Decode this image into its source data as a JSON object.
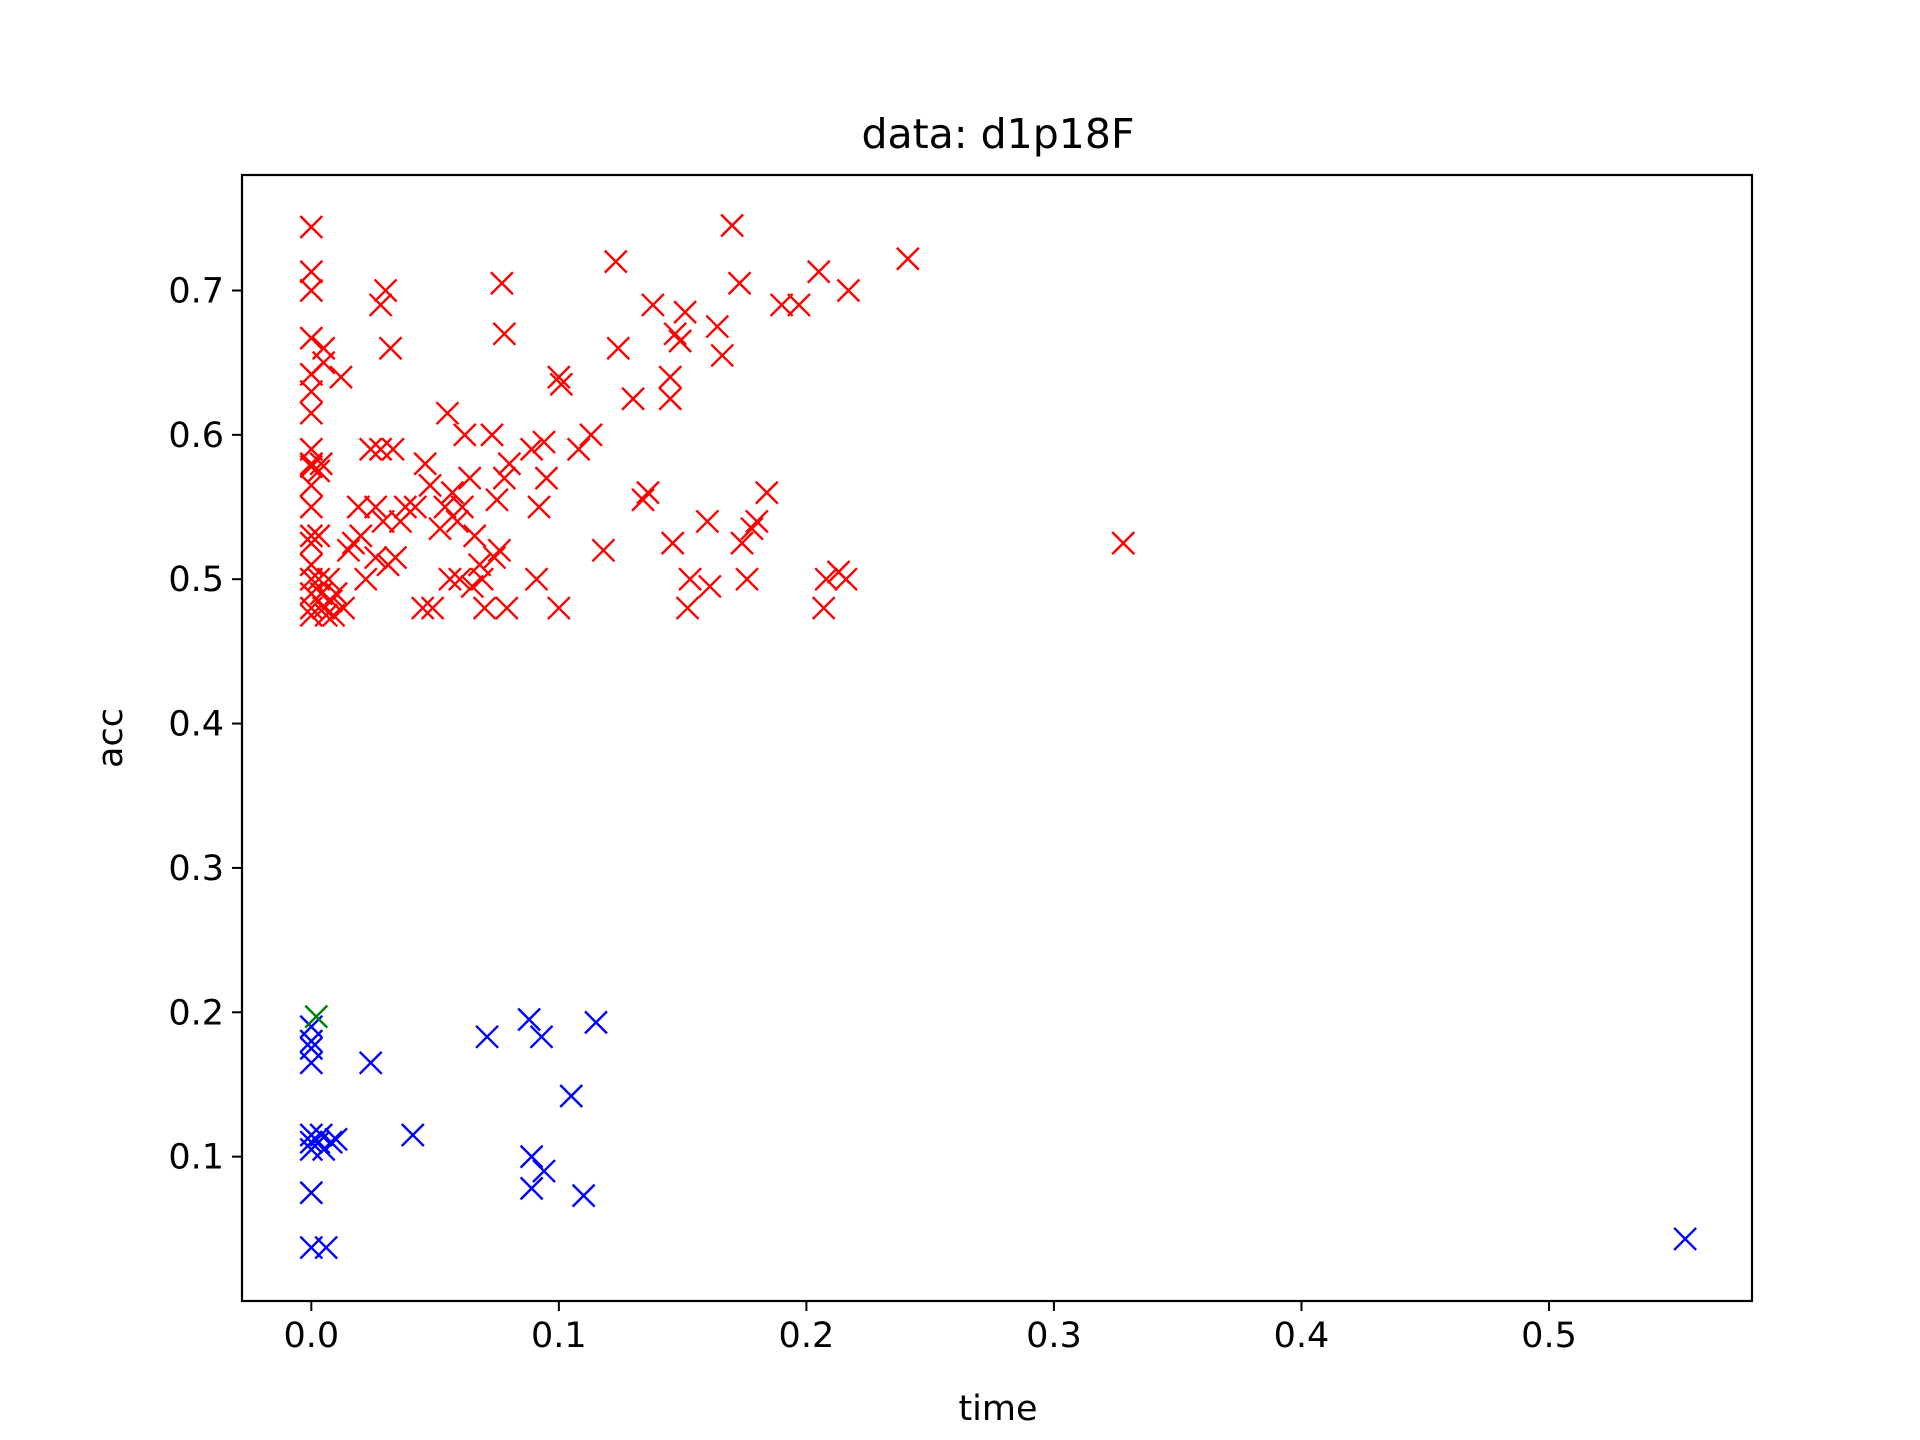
{
  "chart_data": {
    "type": "scatter",
    "title": "data: d1p18F",
    "xlabel": "time",
    "ylabel": "acc",
    "xlim": [
      -0.028,
      0.582
    ],
    "ylim": [
      0.0,
      0.78
    ],
    "xticks": [
      "0.0",
      "0.1",
      "0.2",
      "0.3",
      "0.4",
      "0.5"
    ],
    "yticks": [
      "0.1",
      "0.2",
      "0.3",
      "0.4",
      "0.5",
      "0.6",
      "0.7"
    ],
    "grid": false,
    "legend": "none",
    "marker": "x",
    "series": [
      {
        "color": "#ff0000",
        "points": [
          [
            0.0,
            0.744
          ],
          [
            0.0,
            0.713
          ],
          [
            0.0,
            0.7
          ],
          [
            0.0,
            0.667
          ],
          [
            0.0,
            0.642
          ],
          [
            0.0,
            0.63
          ],
          [
            0.0,
            0.615
          ],
          [
            0.0,
            0.59
          ],
          [
            0.0,
            0.58
          ],
          [
            0.0,
            0.578
          ],
          [
            0.0,
            0.565
          ],
          [
            0.0,
            0.55
          ],
          [
            0.0,
            0.53
          ],
          [
            0.0,
            0.525
          ],
          [
            0.0,
            0.51
          ],
          [
            0.0,
            0.5
          ],
          [
            0.0,
            0.49
          ],
          [
            0.0,
            0.48
          ],
          [
            0.0,
            0.475
          ],
          [
            0.003,
            0.575
          ],
          [
            0.004,
            0.58
          ],
          [
            0.005,
            0.66
          ],
          [
            0.005,
            0.65
          ],
          [
            0.003,
            0.53
          ],
          [
            0.003,
            0.5
          ],
          [
            0.004,
            0.49
          ],
          [
            0.005,
            0.48
          ],
          [
            0.006,
            0.475
          ],
          [
            0.007,
            0.5
          ],
          [
            0.008,
            0.485
          ],
          [
            0.009,
            0.475
          ],
          [
            0.01,
            0.49
          ],
          [
            0.012,
            0.64
          ],
          [
            0.013,
            0.48
          ],
          [
            0.015,
            0.52
          ],
          [
            0.017,
            0.525
          ],
          [
            0.019,
            0.55
          ],
          [
            0.02,
            0.53
          ],
          [
            0.022,
            0.5
          ],
          [
            0.024,
            0.59
          ],
          [
            0.026,
            0.55
          ],
          [
            0.026,
            0.515
          ],
          [
            0.028,
            0.69
          ],
          [
            0.028,
            0.59
          ],
          [
            0.029,
            0.54
          ],
          [
            0.03,
            0.7
          ],
          [
            0.031,
            0.51
          ],
          [
            0.032,
            0.66
          ],
          [
            0.033,
            0.59
          ],
          [
            0.034,
            0.515
          ],
          [
            0.036,
            0.54
          ],
          [
            0.038,
            0.55
          ],
          [
            0.042,
            0.55
          ],
          [
            0.045,
            0.48
          ],
          [
            0.046,
            0.58
          ],
          [
            0.048,
            0.565
          ],
          [
            0.049,
            0.48
          ],
          [
            0.052,
            0.535
          ],
          [
            0.054,
            0.55
          ],
          [
            0.055,
            0.615
          ],
          [
            0.056,
            0.5
          ],
          [
            0.057,
            0.56
          ],
          [
            0.059,
            0.54
          ],
          [
            0.06,
            0.5
          ],
          [
            0.061,
            0.55
          ],
          [
            0.062,
            0.6
          ],
          [
            0.064,
            0.57
          ],
          [
            0.065,
            0.495
          ],
          [
            0.066,
            0.53
          ],
          [
            0.068,
            0.51
          ],
          [
            0.069,
            0.5
          ],
          [
            0.07,
            0.48
          ],
          [
            0.073,
            0.6
          ],
          [
            0.074,
            0.515
          ],
          [
            0.075,
            0.555
          ],
          [
            0.076,
            0.52
          ],
          [
            0.077,
            0.705
          ],
          [
            0.078,
            0.57
          ],
          [
            0.078,
            0.67
          ],
          [
            0.079,
            0.48
          ],
          [
            0.08,
            0.58
          ],
          [
            0.089,
            0.59
          ],
          [
            0.091,
            0.5
          ],
          [
            0.092,
            0.55
          ],
          [
            0.094,
            0.595
          ],
          [
            0.095,
            0.57
          ],
          [
            0.1,
            0.64
          ],
          [
            0.1,
            0.48
          ],
          [
            0.101,
            0.635
          ],
          [
            0.108,
            0.59
          ],
          [
            0.113,
            0.6
          ],
          [
            0.118,
            0.52
          ],
          [
            0.123,
            0.72
          ],
          [
            0.124,
            0.66
          ],
          [
            0.13,
            0.625
          ],
          [
            0.134,
            0.555
          ],
          [
            0.136,
            0.56
          ],
          [
            0.138,
            0.69
          ],
          [
            0.145,
            0.64
          ],
          [
            0.145,
            0.625
          ],
          [
            0.146,
            0.525
          ],
          [
            0.147,
            0.67
          ],
          [
            0.149,
            0.665
          ],
          [
            0.151,
            0.685
          ],
          [
            0.152,
            0.48
          ],
          [
            0.153,
            0.5
          ],
          [
            0.16,
            0.54
          ],
          [
            0.161,
            0.495
          ],
          [
            0.164,
            0.675
          ],
          [
            0.166,
            0.655
          ],
          [
            0.17,
            0.745
          ],
          [
            0.173,
            0.705
          ],
          [
            0.174,
            0.525
          ],
          [
            0.176,
            0.5
          ],
          [
            0.178,
            0.535
          ],
          [
            0.18,
            0.54
          ],
          [
            0.184,
            0.56
          ],
          [
            0.19,
            0.69
          ],
          [
            0.197,
            0.69
          ],
          [
            0.205,
            0.713
          ],
          [
            0.207,
            0.48
          ],
          [
            0.208,
            0.5
          ],
          [
            0.213,
            0.505
          ],
          [
            0.216,
            0.5
          ],
          [
            0.217,
            0.7
          ],
          [
            0.241,
            0.722
          ],
          [
            0.328,
            0.525
          ]
        ]
      },
      {
        "color": "#0000ff",
        "points": [
          [
            0.0,
            0.19
          ],
          [
            0.0,
            0.18
          ],
          [
            0.0,
            0.165
          ],
          [
            0.0,
            0.175
          ],
          [
            0.0,
            0.115
          ],
          [
            0.0,
            0.11
          ],
          [
            0.0,
            0.105
          ],
          [
            0.0,
            0.075
          ],
          [
            0.0,
            0.037
          ],
          [
            0.003,
            0.11
          ],
          [
            0.004,
            0.115
          ],
          [
            0.005,
            0.105
          ],
          [
            0.006,
            0.037
          ],
          [
            0.008,
            0.11
          ],
          [
            0.01,
            0.112
          ],
          [
            0.024,
            0.165
          ],
          [
            0.041,
            0.115
          ],
          [
            0.071,
            0.183
          ],
          [
            0.088,
            0.195
          ],
          [
            0.089,
            0.1
          ],
          [
            0.089,
            0.078
          ],
          [
            0.093,
            0.183
          ],
          [
            0.094,
            0.09
          ],
          [
            0.105,
            0.142
          ],
          [
            0.11,
            0.073
          ],
          [
            0.115,
            0.193
          ],
          [
            0.555,
            0.043
          ]
        ]
      },
      {
        "color": "#008000",
        "points": [
          [
            0.002,
            0.197
          ]
        ]
      }
    ]
  }
}
